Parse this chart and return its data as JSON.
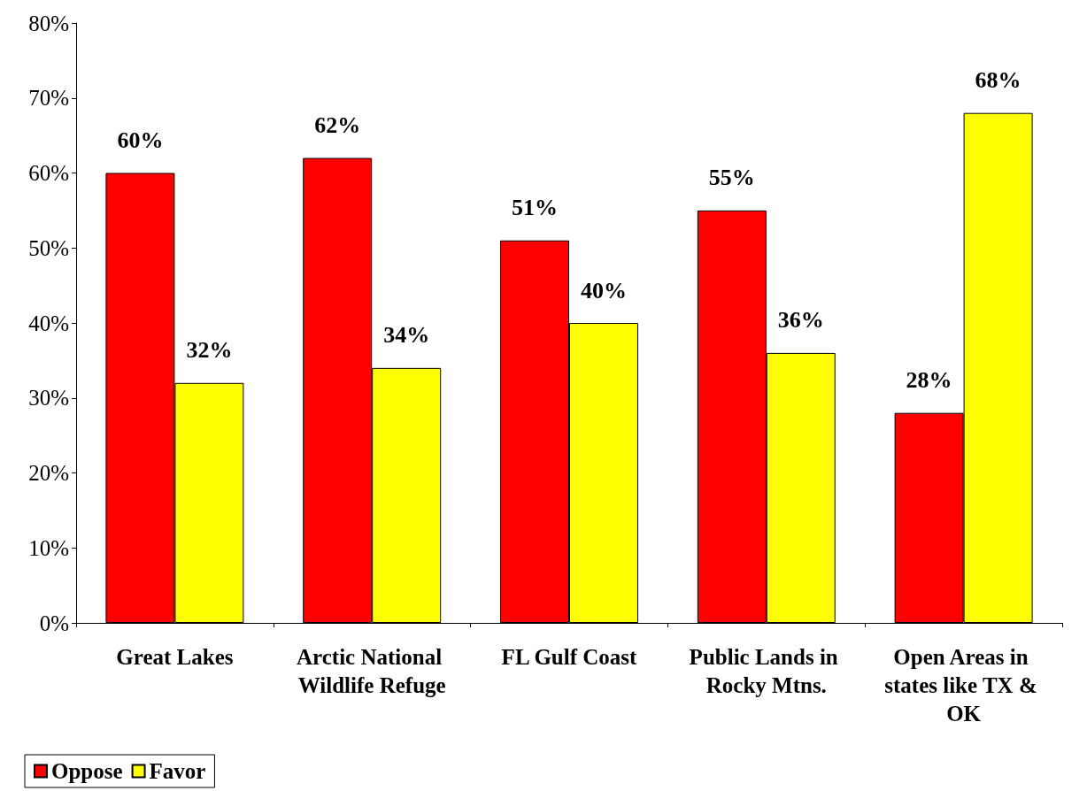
{
  "chart_data": {
    "type": "bar",
    "categories": [
      "Great Lakes",
      "Arctic National Wildlife Refuge",
      "FL Gulf Coast",
      "Public Lands in Rocky Mtns.",
      "Open Areas in states like TX & OK"
    ],
    "series": [
      {
        "name": "Oppose",
        "color": "#ff0000",
        "values": [
          60,
          62,
          51,
          55,
          28
        ],
        "value_labels": [
          "60%",
          "62%",
          "51%",
          "55%",
          "28%"
        ]
      },
      {
        "name": "Favor",
        "color": "#ffff00",
        "values": [
          32,
          34,
          40,
          36,
          68
        ],
        "value_labels": [
          "32%",
          "34%",
          "40%",
          "36%",
          "68%"
        ]
      }
    ],
    "ylim": [
      0,
      80
    ],
    "yticks": [
      {
        "value": 0,
        "label": "0%"
      },
      {
        "value": 10,
        "label": "10%"
      },
      {
        "value": 20,
        "label": "20%"
      },
      {
        "value": 30,
        "label": "30%"
      },
      {
        "value": 40,
        "label": "40%"
      },
      {
        "value": 50,
        "label": "50%"
      },
      {
        "value": 60,
        "label": "60%"
      },
      {
        "value": 70,
        "label": "70%"
      },
      {
        "value": 80,
        "label": "80%"
      }
    ],
    "grid": false,
    "legend": "bottom left"
  }
}
